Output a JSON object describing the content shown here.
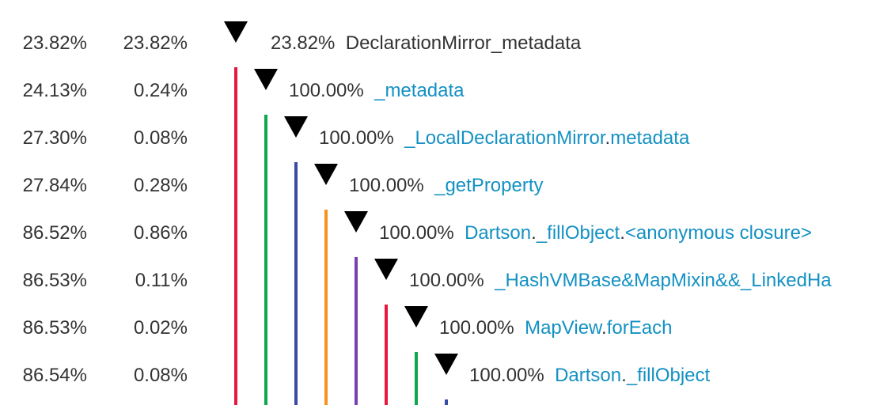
{
  "rows": [
    {
      "inclusive": "23.82%",
      "exclusive": "23.82%",
      "node_percent": "23.82%",
      "name_parts": [
        "DeclarationMirror_metadata"
      ],
      "link": false
    },
    {
      "inclusive": "24.13%",
      "exclusive": "0.24%",
      "node_percent": "100.00%",
      "name_parts": [
        "_metadata"
      ],
      "link": true
    },
    {
      "inclusive": "27.30%",
      "exclusive": "0.08%",
      "node_percent": "100.00%",
      "name_parts": [
        "_LocalDeclarationMirror",
        ".",
        "metadata"
      ],
      "link": true
    },
    {
      "inclusive": "27.84%",
      "exclusive": "0.28%",
      "node_percent": "100.00%",
      "name_parts": [
        "_getProperty"
      ],
      "link": true
    },
    {
      "inclusive": "86.52%",
      "exclusive": "0.86%",
      "node_percent": "100.00%",
      "name_parts": [
        "Dartson",
        ".",
        "_fillObject",
        ".",
        "<anonymous closure>"
      ],
      "link": true
    },
    {
      "inclusive": "86.53%",
      "exclusive": "0.11%",
      "node_percent": "100.00%",
      "name_parts": [
        "_HashVMBase&MapMixin&&_LinkedHa"
      ],
      "link": true
    },
    {
      "inclusive": "86.53%",
      "exclusive": "0.02%",
      "node_percent": "100.00%",
      "name_parts": [
        "MapView",
        ".",
        "forEach"
      ],
      "link": true
    },
    {
      "inclusive": "86.54%",
      "exclusive": "0.08%",
      "node_percent": "100.00%",
      "name_parts": [
        "Dartson",
        ".",
        "_fillObject"
      ],
      "link": true
    }
  ],
  "colors": {
    "link": "#1391c3",
    "text": "#333333",
    "toggle": "#000000",
    "depth_lines": [
      "#e8183c",
      "#0fa64d",
      "#3a4ba3",
      "#f7931e",
      "#7a3fb0",
      "#e8183c",
      "#0fa64d",
      "#3a4ba3"
    ]
  },
  "icons": {
    "toggle": "expanded-triangle-icon"
  }
}
